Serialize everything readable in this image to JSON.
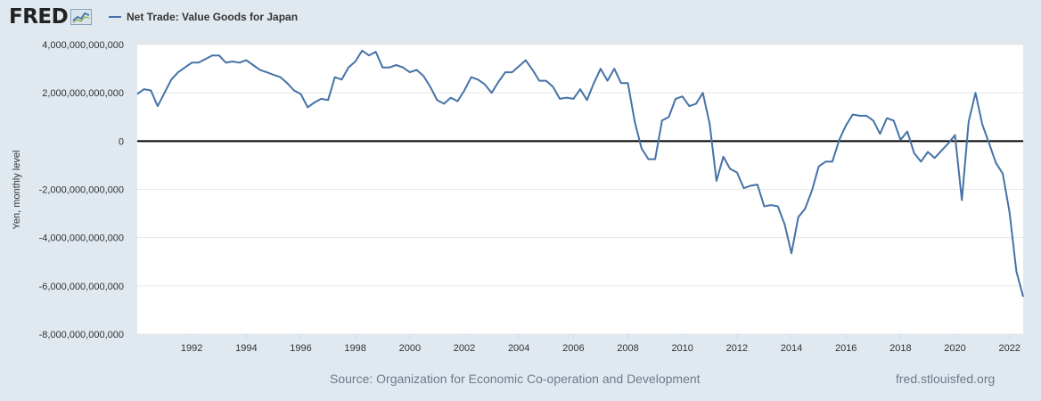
{
  "header": {
    "logo_text": "FRED",
    "series_title": "Net Trade: Value Goods for Japan"
  },
  "footer": {
    "source": "Source: Organization for Economic Co-operation and Development",
    "site": "fred.stlouisfed.org"
  },
  "colors": {
    "series": "#4572a7",
    "background": "#e1e9f0",
    "plot_bg": "#ffffff",
    "zero_line": "#000000",
    "grid": "#e6e6e6"
  },
  "chart_data": {
    "type": "line",
    "title": "Net Trade: Value Goods for Japan",
    "xlabel": "",
    "ylabel": "Yen, monthly level",
    "x_tick_labels": [
      "1992",
      "1994",
      "1996",
      "1998",
      "2000",
      "2002",
      "2004",
      "2006",
      "2008",
      "2010",
      "2012",
      "2014",
      "2016",
      "2018",
      "2020",
      "2022"
    ],
    "y_tick_labels": [
      "4,000,000,000,000",
      "2,000,000,000,000",
      "0",
      "-2,000,000,000,000",
      "-4,000,000,000,000",
      "-6,000,000,000,000",
      "-8,000,000,000,000"
    ],
    "y_ticks": [
      4000000000000,
      2000000000000,
      0,
      -2000000000000,
      -4000000000000,
      -6000000000000,
      -8000000000000
    ],
    "xlim": [
      1990.0,
      2022.5
    ],
    "ylim": [
      -8000000000000,
      4000000000000
    ],
    "grid": true,
    "legend": "top-left",
    "series": [
      {
        "name": "Net Trade: Value Goods for Japan",
        "x": [
          1990.0,
          1990.25,
          1990.5,
          1990.75,
          1991.0,
          1991.25,
          1991.5,
          1991.75,
          1992.0,
          1992.25,
          1992.5,
          1992.75,
          1993.0,
          1993.25,
          1993.5,
          1993.75,
          1994.0,
          1994.25,
          1994.5,
          1994.75,
          1995.0,
          1995.25,
          1995.5,
          1995.75,
          1996.0,
          1996.25,
          1996.5,
          1996.75,
          1997.0,
          1997.25,
          1997.5,
          1997.75,
          1998.0,
          1998.25,
          1998.5,
          1998.75,
          1999.0,
          1999.25,
          1999.5,
          1999.75,
          2000.0,
          2000.25,
          2000.5,
          2000.75,
          2001.0,
          2001.25,
          2001.5,
          2001.75,
          2002.0,
          2002.25,
          2002.5,
          2002.75,
          2003.0,
          2003.25,
          2003.5,
          2003.75,
          2004.0,
          2004.25,
          2004.5,
          2004.75,
          2005.0,
          2005.25,
          2005.5,
          2005.75,
          2006.0,
          2006.25,
          2006.5,
          2006.75,
          2007.0,
          2007.25,
          2007.5,
          2007.75,
          2008.0,
          2008.25,
          2008.5,
          2008.75,
          2009.0,
          2009.25,
          2009.5,
          2009.75,
          2010.0,
          2010.25,
          2010.5,
          2010.75,
          2011.0,
          2011.25,
          2011.5,
          2011.75,
          2012.0,
          2012.25,
          2012.5,
          2012.75,
          2013.0,
          2013.25,
          2013.5,
          2013.75,
          2014.0,
          2014.25,
          2014.5,
          2014.75,
          2015.0,
          2015.25,
          2015.5,
          2015.75,
          2016.0,
          2016.25,
          2016.5,
          2016.75,
          2017.0,
          2017.25,
          2017.5,
          2017.75,
          2018.0,
          2018.25,
          2018.5,
          2018.75,
          2019.0,
          2019.25,
          2019.5,
          2019.75,
          2020.0,
          2020.25,
          2020.5,
          2020.75,
          2021.0,
          2021.25,
          2021.5,
          2021.75,
          2022.0,
          2022.25,
          2022.5
        ],
        "values": [
          1950000000000,
          2150000000000,
          2100000000000,
          1450000000000,
          2000000000000,
          2550000000000,
          2850000000000,
          3050000000000,
          3250000000000,
          3250000000000,
          3400000000000,
          3550000000000,
          3550000000000,
          3250000000000,
          3300000000000,
          3250000000000,
          3350000000000,
          3150000000000,
          2950000000000,
          2850000000000,
          2750000000000,
          2650000000000,
          2400000000000,
          2100000000000,
          1950000000000,
          1400000000000,
          1600000000000,
          1750000000000,
          1700000000000,
          2650000000000,
          2550000000000,
          3050000000000,
          3300000000000,
          3750000000000,
          3550000000000,
          3700000000000,
          3050000000000,
          3050000000000,
          3150000000000,
          3050000000000,
          2850000000000,
          2950000000000,
          2700000000000,
          2250000000000,
          1700000000000,
          1550000000000,
          1800000000000,
          1650000000000,
          2100000000000,
          2650000000000,
          2550000000000,
          2350000000000,
          2000000000000,
          2450000000000,
          2850000000000,
          2850000000000,
          3100000000000,
          3350000000000,
          2950000000000,
          2500000000000,
          2500000000000,
          2250000000000,
          1750000000000,
          1800000000000,
          1750000000000,
          2150000000000,
          1700000000000,
          2400000000000,
          3000000000000,
          2500000000000,
          3000000000000,
          2400000000000,
          2400000000000,
          800000000000,
          -300000000000,
          -750000000000,
          -750000000000,
          850000000000,
          1000000000000,
          1750000000000,
          1850000000000,
          1450000000000,
          1550000000000,
          2000000000000,
          700000000000,
          -1650000000000,
          -650000000000,
          -1150000000000,
          -1300000000000,
          -1950000000000,
          -1850000000000,
          -1800000000000,
          -2700000000000,
          -2650000000000,
          -2700000000000,
          -3450000000000,
          -4650000000000,
          -3150000000000,
          -2800000000000,
          -2050000000000,
          -1050000000000,
          -850000000000,
          -850000000000,
          50000000000,
          650000000000,
          1100000000000,
          1050000000000,
          1050000000000,
          850000000000,
          300000000000,
          950000000000,
          850000000000,
          50000000000,
          400000000000,
          -500000000000,
          -850000000000,
          -450000000000,
          -700000000000,
          -400000000000,
          -100000000000,
          250000000000,
          -2450000000000,
          800000000000,
          2000000000000,
          700000000000,
          -100000000000,
          -900000000000,
          -1350000000000,
          -2950000000000,
          -5400000000000,
          -6450000000000
        ]
      }
    ]
  }
}
